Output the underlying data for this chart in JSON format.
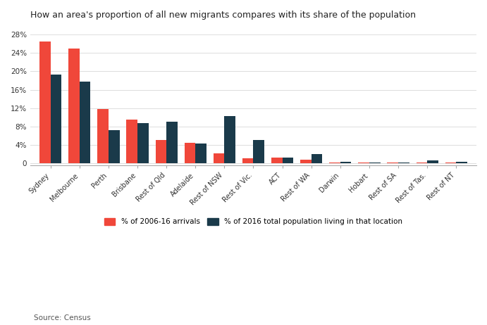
{
  "title": "How an area's proportion of all new migrants compares with its share of the population",
  "categories": [
    "Sydney",
    "Melbourne",
    "Perth",
    "Brisbane",
    "Rest of Qld",
    "Adelaide",
    "Rest of NSW",
    "Rest of Vic.",
    "ACT",
    "Rest of WA",
    "Darwin",
    "Hobart",
    "Rest of SA",
    "Rest of Tas.",
    "Rest of NT"
  ],
  "arrivals": [
    26.5,
    25.0,
    11.8,
    9.5,
    5.0,
    4.4,
    2.2,
    1.0,
    1.2,
    0.8,
    0.2,
    0.15,
    0.15,
    0.2,
    0.15
  ],
  "population": [
    19.3,
    17.8,
    7.2,
    8.7,
    9.0,
    4.3,
    10.2,
    5.0,
    1.3,
    2.0,
    0.3,
    0.2,
    0.2,
    0.6,
    0.3
  ],
  "arrivals_color": "#f0473a",
  "population_color": "#1a3a4a",
  "background_color": "#ffffff",
  "grid_color": "#dddddd",
  "yticks": [
    0,
    4,
    8,
    12,
    16,
    20,
    24,
    28
  ],
  "ytick_labels": [
    "0",
    "4%",
    "8%",
    "12%",
    "16%",
    "20%",
    "24%",
    "28%"
  ],
  "source_text": "Source: Census",
  "legend_label_arrivals": "% of 2006-16 arrivals",
  "legend_label_population": "% of 2016 total population living in that location"
}
